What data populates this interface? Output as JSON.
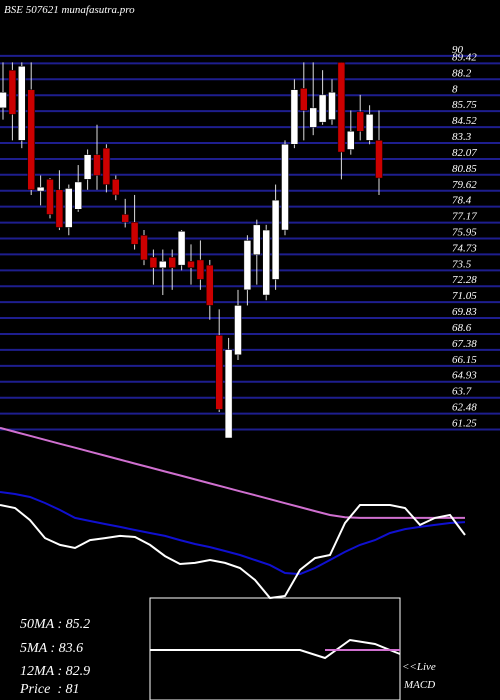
{
  "chart_data": [
    {
      "type": "candlestick",
      "title": "BSE 507621 munafasutra.pro",
      "open": [
        86.0,
        88.9,
        83.5,
        87.4,
        79.6,
        80.5,
        79.7,
        76.8,
        78.2,
        80.5,
        82.4,
        82.9,
        80.5,
        77.8,
        77.2,
        76.2,
        74.5,
        73.7,
        74.5,
        73.9,
        74.2,
        74.3,
        73.9,
        68.5,
        60.6,
        67.0,
        72.0,
        74.7,
        71.6,
        72.8,
        76.6,
        83.2,
        87.5,
        84.5,
        84.9,
        85.1,
        89.5,
        82.8,
        85.7,
        83.5,
        83.5
      ],
      "high": [
        89.5,
        89.5,
        89.5,
        89.5,
        80.8,
        80.6,
        81.2,
        80.1,
        81.6,
        82.8,
        84.7,
        83.2,
        80.8,
        79.0,
        79.3,
        76.6,
        75.1,
        75.1,
        75.1,
        76.6,
        75.5,
        75.8,
        74.3,
        70.5,
        68.3,
        72.0,
        76.2,
        77.4,
        77.0,
        80.1,
        83.5,
        88.2,
        89.5,
        89.5,
        88.9,
        88.2,
        89.5,
        85.8,
        87.0,
        86.2,
        85.8
      ],
      "low": [
        85.1,
        83.5,
        82.9,
        79.3,
        78.5,
        77.5,
        76.6,
        76.2,
        78.0,
        79.7,
        79.7,
        79.5,
        78.9,
        76.8,
        75.1,
        73.9,
        72.4,
        71.6,
        72.0,
        73.5,
        72.4,
        72.0,
        69.7,
        62.6,
        60.6,
        66.6,
        70.8,
        72.4,
        71.2,
        72.0,
        76.2,
        82.9,
        83.5,
        83.9,
        84.7,
        84.7,
        80.5,
        82.4,
        83.5,
        83.2,
        79.3
      ],
      "close": [
        87.2,
        85.5,
        89.2,
        79.7,
        79.9,
        77.8,
        76.8,
        79.8,
        80.3,
        82.4,
        80.8,
        80.1,
        79.3,
        77.2,
        75.5,
        74.3,
        73.7,
        74.2,
        73.7,
        76.5,
        73.7,
        72.8,
        70.8,
        62.8,
        67.4,
        70.8,
        75.8,
        77.0,
        76.6,
        78.9,
        83.2,
        87.4,
        85.8,
        86.0,
        87.0,
        87.2,
        82.6,
        84.2,
        84.2,
        85.5,
        80.6
      ],
      "up_color": "#ffffff",
      "down_color": "#cc0000",
      "grid_color": "#1e1e8e",
      "ylim": [
        60.6,
        94.3
      ],
      "yticks": [
        90,
        89.42,
        88.2,
        {
          "value": 86.97,
          "label": "8"
        },
        85.75,
        84.52,
        83.3,
        82.07,
        80.85,
        79.62,
        78.4,
        77.17,
        75.95,
        74.73,
        73.5,
        72.28,
        71.05,
        69.83,
        68.6,
        67.38,
        66.15,
        64.93,
        63.7,
        62.48,
        61.25
      ]
    },
    {
      "type": "line",
      "ylim": [
        0,
        100
      ],
      "series": [
        {
          "color": "#d070d0",
          "values": [
            95.6,
            93.4,
            91.2,
            89.0,
            86.8,
            84.6,
            82.4,
            80.2,
            78.0,
            75.8,
            73.6,
            71.4,
            69.2,
            67.0,
            64.8,
            62.6,
            60.4,
            58.2,
            56.0,
            53.8,
            51.6,
            49.4,
            47.2,
            46.0,
            45.6,
            45.6,
            45.6,
            45.6,
            45.6,
            45.6,
            45.6,
            45.6
          ]
        },
        {
          "color": "#1010d0",
          "values": [
            60,
            58.9,
            57.2,
            53.9,
            50,
            45.6,
            43.9,
            42.2,
            40.6,
            38.9,
            37.2,
            35.6,
            33.3,
            31.1,
            29.4,
            27.2,
            25,
            22.2,
            19.4,
            15,
            14.4,
            17.8,
            22.2,
            26.7,
            30.6,
            33.3,
            37.2,
            39.4,
            40.6,
            41.7,
            42.8,
            43.3
          ]
        },
        {
          "color": "#ffffff",
          "values": [
            52.8,
            51.1,
            44.4,
            34.4,
            30.6,
            28.9,
            33.3,
            34.4,
            35.6,
            35,
            30.6,
            24.4,
            20,
            20.6,
            22.2,
            20.6,
            17.8,
            11.1,
            1.1,
            2.2,
            16.7,
            23.3,
            25,
            42.8,
            52.8,
            52.8,
            52.8,
            51.1,
            41.7,
            45.6,
            47.2,
            36.1
          ]
        }
      ]
    },
    {
      "type": "line",
      "ylim": [
        -1,
        1
      ],
      "annotations": [
        "<<Live",
        "MACD"
      ],
      "series": [
        {
          "color": "#ffffff",
          "values": [
            0,
            0,
            0,
            0,
            0,
            0,
            0,
            -0.4,
            0.5,
            0.3,
            -0.2
          ]
        },
        {
          "color": "#d070d0",
          "values": [
            null,
            null,
            null,
            null,
            null,
            null,
            null,
            0,
            0,
            0,
            0
          ]
        }
      ]
    }
  ],
  "info": [
    "50MA : 85.2",
    "5MA : 83.6",
    "12MA : 82.9",
    "Price  : 81"
  ]
}
